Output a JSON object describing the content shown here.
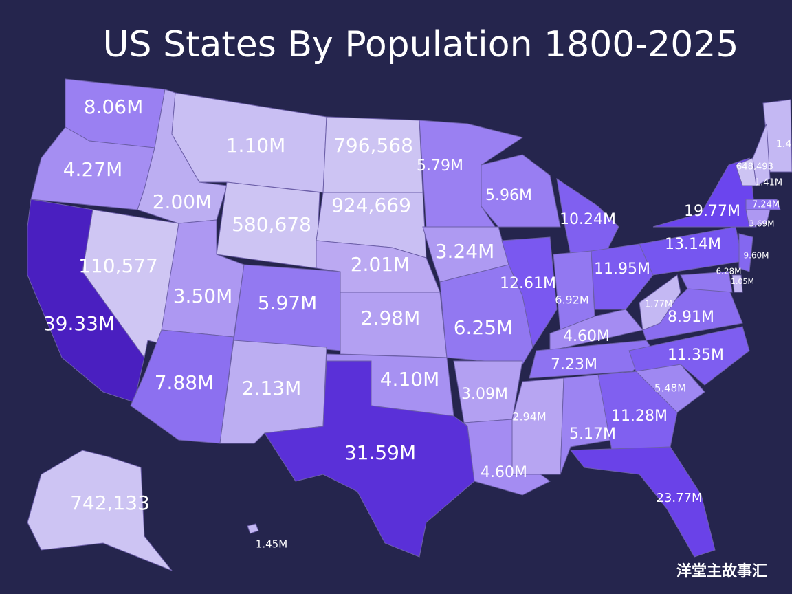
{
  "title": "US States By Population 1800-2025",
  "watermark": "洋堂主故事汇",
  "states": [
    {
      "label": "8.06M",
      "color": "#9a80f2"
    },
    {
      "label": "4.27M",
      "color": "#a58ef2"
    },
    {
      "label": "39.33M",
      "color": "#4a1fc0"
    },
    {
      "label": "110,577",
      "color": "#cfc6f3"
    },
    {
      "label": "2.00M",
      "color": "#bcaef2"
    },
    {
      "label": "1.10M",
      "color": "#c9bff3"
    },
    {
      "label": "580,678",
      "color": "#cdc4f3"
    },
    {
      "label": "3.50M",
      "color": "#ad98f2"
    },
    {
      "label": "5.97M",
      "color": "#9379f1"
    },
    {
      "label": "7.88M",
      "color": "#8c70f0"
    },
    {
      "label": "2.13M",
      "color": "#bcaef2"
    },
    {
      "label": "796,568",
      "color": "#cdc4f3"
    },
    {
      "label": "924,669",
      "color": "#c9bff3"
    },
    {
      "label": "2.01M",
      "color": "#bba9f2"
    },
    {
      "label": "2.98M",
      "color": "#b3a0f2"
    },
    {
      "label": "4.10M",
      "color": "#a791f2"
    },
    {
      "label": "31.59M",
      "color": "#5a30d8"
    },
    {
      "label": "5.79M",
      "color": "#9a80f2"
    },
    {
      "label": "3.24M",
      "color": "#ae9af2"
    },
    {
      "label": "6.25M",
      "color": "#9278f1"
    },
    {
      "label": "3.09M",
      "color": "#b3a0f2"
    },
    {
      "label": "4.60M",
      "color": "#a48cf2"
    },
    {
      "label": "5.96M",
      "color": "#987ef2"
    },
    {
      "label": "12.61M",
      "color": "#7a58f0"
    },
    {
      "label": "10.24M",
      "color": "#8060f0"
    },
    {
      "label": "6.92M",
      "color": "#9278f1"
    },
    {
      "label": "11.95M",
      "color": "#7c5bf0"
    },
    {
      "label": "4.60M",
      "color": "#a48cf2"
    },
    {
      "label": "7.23M",
      "color": "#8e73f1"
    },
    {
      "label": "2.94M",
      "color": "#b7a5f2"
    },
    {
      "label": "5.17M",
      "color": "#9c84f2"
    },
    {
      "label": "11.28M",
      "color": "#8060f0"
    },
    {
      "label": "23.77M",
      "color": "#6a42e8"
    },
    {
      "label": "5.48M",
      "color": "#9f88f2"
    },
    {
      "label": "11.35M",
      "color": "#7e5ef0"
    },
    {
      "label": "8.91M",
      "color": "#8a6df0"
    },
    {
      "label": "1.77M",
      "color": "#c4b8f3"
    },
    {
      "label": "13.14M",
      "color": "#7656f0"
    },
    {
      "label": "19.77M",
      "color": "#6b45ee"
    },
    {
      "label": "1.4",
      "color": "#c4b8f3"
    },
    {
      "label": "648,493",
      "color": "#cdc4f3"
    },
    {
      "label": "1.41M",
      "color": "#c4b8f3"
    },
    {
      "label": "7.24M",
      "color": "#8e73f1"
    },
    {
      "label": "3.69M",
      "color": "#ad98f2"
    },
    {
      "label": "9.60M",
      "color": "#8468f0"
    },
    {
      "label": "6.28M",
      "color": "#9278f1"
    },
    {
      "label": "1.05M",
      "color": "#c4b8f3"
    },
    {
      "label": "742,133",
      "color": "#cdc4f3"
    },
    {
      "label": "1.45M",
      "color": "#c4b8f3"
    }
  ]
}
